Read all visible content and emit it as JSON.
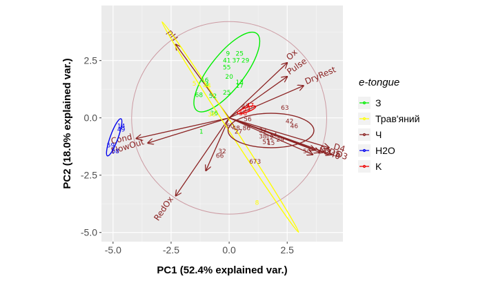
{
  "chart_data": {
    "type": "scatter",
    "subtype": "pca-biplot",
    "xlabel": "PC1 (52.4% explained var.)",
    "ylabel": "PC2 (18.0% explained var.)",
    "xlim": [
      -5.5,
      4.9
    ],
    "ylim": [
      -5.4,
      4.9
    ],
    "xticks": [
      -5.0,
      -2.5,
      0.0,
      2.5
    ],
    "yticks": [
      -5.0,
      -2.5,
      0.0,
      2.5
    ],
    "xtick_labels": [
      "-5.0",
      "-2.5",
      "0.0",
      "2.5"
    ],
    "ytick_labels": [
      "-5.0",
      "-2.5",
      "0.0",
      "2.5"
    ],
    "grid": true,
    "background": "#ebebeb",
    "legend": {
      "title": "e-tongue",
      "placement": "right",
      "entries": [
        {
          "name": "З",
          "color": "#00ee00"
        },
        {
          "name": "Трав'яний",
          "color": "#ffff00"
        },
        {
          "name": "Ч",
          "color": "#8b2323"
        },
        {
          "name": "H2O",
          "color": "#0000ee"
        },
        {
          "name": "K",
          "color": "#ee0000"
        }
      ]
    },
    "correlation_circle": {
      "radius": 4.2,
      "color": "#cc9aa2"
    },
    "loadings": [
      {
        "name": "pH",
        "x": -2.3,
        "y": 3.2
      },
      {
        "name": "Ox",
        "x": 2.5,
        "y": 2.4
      },
      {
        "name": "Pulse",
        "x": 2.5,
        "y": 1.8
      },
      {
        "name": "DryRest",
        "x": 3.2,
        "y": 1.4
      },
      {
        "name": "Cond",
        "x": -4.0,
        "y": -0.9
      },
      {
        "name": "FlowOut",
        "x": -3.5,
        "y": -1.1
      },
      {
        "name": "RedOx",
        "x": -2.3,
        "y": -3.4
      },
      {
        "name": "D4",
        "x": 4.3,
        "y": -1.3
      },
      {
        "name": "D3",
        "x": 4.4,
        "y": -1.6
      },
      {
        "name": "D5",
        "x": 4.1,
        "y": -1.5
      },
      {
        "name": "D40",
        "x": 3.9,
        "y": -1.5
      },
      {
        "name": "D2",
        "x": 3.7,
        "y": -1.4
      },
      {
        "name": "",
        "x": -1.0,
        "y": -2.3
      },
      {
        "name": "",
        "x": 3.6,
        "y": -1.6
      }
    ],
    "ellipses": [
      {
        "group": "З",
        "color": "#00ee00",
        "cx": -0.1,
        "cy": 2.0,
        "rx": 2.1,
        "ry": 0.75,
        "angle_deg": 52
      },
      {
        "group": "Трав'яний",
        "color": "#ffff00",
        "cx": 0.05,
        "cy": -0.4,
        "rx": 5.4,
        "ry": 0.14,
        "angle_deg": -57
      },
      {
        "group": "Ч",
        "color": "#8b2323",
        "cx": 1.8,
        "cy": -0.55,
        "rx": 1.85,
        "ry": 0.75,
        "angle_deg": 0
      },
      {
        "group": "H2O",
        "color": "#0000ee",
        "cx": -4.95,
        "cy": -0.85,
        "rx": 0.85,
        "ry": 0.17,
        "angle_deg": 70
      },
      {
        "group": "K",
        "color": "#ee0000",
        "cx": 0.75,
        "cy": 0.35,
        "rx": 0.42,
        "ry": 0.1,
        "angle_deg": 20
      }
    ],
    "points": [
      {
        "group": "З",
        "label": "9",
        "x": -0.05,
        "y": 2.8
      },
      {
        "group": "З",
        "label": "25",
        "x": 0.45,
        "y": 2.8
      },
      {
        "group": "З",
        "label": "41",
        "x": -0.1,
        "y": 2.5
      },
      {
        "group": "З",
        "label": "37",
        "x": 0.3,
        "y": 2.5
      },
      {
        "group": "З",
        "label": "29",
        "x": 0.7,
        "y": 2.5
      },
      {
        "group": "З",
        "label": "55",
        "x": -0.1,
        "y": 2.2
      },
      {
        "group": "З",
        "label": "20",
        "x": 0.0,
        "y": 1.8
      },
      {
        "group": "З",
        "label": "16",
        "x": -1.05,
        "y": 1.65
      },
      {
        "group": "З",
        "label": "4",
        "x": -0.95,
        "y": 1.45
      },
      {
        "group": "З",
        "label": "13",
        "x": 0.45,
        "y": 1.55
      },
      {
        "group": "З",
        "label": "17",
        "x": 0.45,
        "y": 1.4
      },
      {
        "group": "З",
        "label": "25",
        "x": -0.1,
        "y": 1.1
      },
      {
        "group": "З",
        "label": "68",
        "x": -1.3,
        "y": 1.0
      },
      {
        "group": "З",
        "label": "52",
        "x": -0.7,
        "y": 0.95
      },
      {
        "group": "З",
        "label": "36",
        "x": -0.65,
        "y": 0.2
      },
      {
        "group": "З",
        "label": "1",
        "x": -1.2,
        "y": -0.6
      },
      {
        "group": "Трав'яний",
        "label": "44",
        "x": -0.95,
        "y": 1.4
      },
      {
        "group": "Трав'яний",
        "label": "36",
        "x": -0.75,
        "y": 0.15
      },
      {
        "group": "Трав'яний",
        "label": "8",
        "x": 1.2,
        "y": -3.7
      },
      {
        "group": "Трав'яний",
        "label": "5",
        "x": -1.5,
        "y": 1.5
      },
      {
        "group": "Ч",
        "label": "63",
        "x": 2.4,
        "y": 0.45
      },
      {
        "group": "Ч",
        "label": "42",
        "x": 2.6,
        "y": -0.15
      },
      {
        "group": "Ч",
        "label": "46",
        "x": 2.8,
        "y": -0.35
      },
      {
        "group": "Ч",
        "label": "33",
        "x": 1.45,
        "y": -0.55
      },
      {
        "group": "Ч",
        "label": "38",
        "x": 1.45,
        "y": -0.8
      },
      {
        "group": "Ч",
        "label": "34",
        "x": 1.9,
        "y": -0.75
      },
      {
        "group": "Ч",
        "label": "12",
        "x": 1.75,
        "y": -0.85
      },
      {
        "group": "Ч",
        "label": "29",
        "x": 2.2,
        "y": -0.95
      },
      {
        "group": "Ч",
        "label": "51",
        "x": 1.6,
        "y": -1.05
      },
      {
        "group": "Ч",
        "label": "15",
        "x": 1.8,
        "y": -1.1
      },
      {
        "group": "Ч",
        "label": "50",
        "x": 3.35,
        "y": -1.45
      },
      {
        "group": "Ч",
        "label": "32",
        "x": -0.3,
        "y": -1.45
      },
      {
        "group": "Ч",
        "label": "66",
        "x": -0.4,
        "y": -1.65
      },
      {
        "group": "Ч",
        "label": "73",
        "x": 1.2,
        "y": -1.9
      },
      {
        "group": "Ч",
        "label": "6",
        "x": 0.95,
        "y": -1.9
      },
      {
        "group": "Ч",
        "label": "56",
        "x": 0.8,
        "y": -0.05
      },
      {
        "group": "Ч",
        "label": "60",
        "x": 0.05,
        "y": -0.35
      },
      {
        "group": "Ч",
        "label": "27",
        "x": 0.4,
        "y": -0.6
      },
      {
        "group": "Ч",
        "label": "48",
        "x": 0.3,
        "y": -0.45
      },
      {
        "group": "Ч",
        "label": "86",
        "x": 0.75,
        "y": -0.45
      },
      {
        "group": "Ч",
        "label": "47",
        "x": 0.7,
        "y": 0.5
      },
      {
        "group": "H2O",
        "label": "14",
        "x": -4.65,
        "y": -0.35
      },
      {
        "group": "H2O",
        "label": "49",
        "x": -4.65,
        "y": -0.5
      },
      {
        "group": "H2O",
        "label": "59",
        "x": -5.1,
        "y": -1.2
      },
      {
        "group": "H2O",
        "label": "58",
        "x": -4.9,
        "y": -1.45
      },
      {
        "group": "K",
        "label": "47",
        "x": 0.9,
        "y": 0.55
      },
      {
        "group": "K",
        "label": "53",
        "x": 0.75,
        "y": 0.4
      },
      {
        "group": "K",
        "label": "56",
        "x": 0.6,
        "y": 0.2
      }
    ]
  }
}
